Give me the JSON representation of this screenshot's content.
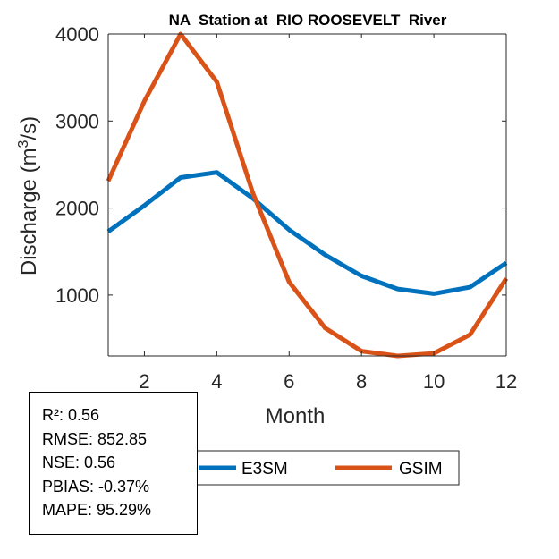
{
  "chart_data": {
    "type": "line",
    "title": "NA  Station at  RIO ROOSEVELT  River",
    "xlabel": "Month",
    "ylabel_prefix": "Discharge (m",
    "ylabel_sup": "3",
    "ylabel_suffix": "/s)",
    "xlim": [
      1,
      12
    ],
    "ylim": [
      300,
      4000
    ],
    "xticks": [
      2,
      4,
      6,
      8,
      10,
      12
    ],
    "yticks": [
      1000,
      2000,
      3000,
      4000
    ],
    "x": [
      1,
      2,
      3,
      4,
      5,
      6,
      7,
      8,
      9,
      10,
      11,
      12
    ],
    "series": [
      {
        "name": "E3SM",
        "color": "#0072BD",
        "values": [
          1730,
          2030,
          2350,
          2410,
          2110,
          1750,
          1460,
          1220,
          1070,
          1015,
          1090,
          1370
        ]
      },
      {
        "name": "GSIM",
        "color": "#D95319",
        "values": [
          2310,
          3230,
          4000,
          3450,
          2170,
          1150,
          620,
          355,
          300,
          330,
          545,
          1190
        ]
      }
    ],
    "legend_position": "bottom-center",
    "grid": false
  },
  "stats": [
    "R²: 0.56",
    "RMSE: 852.85",
    "NSE: 0.56",
    "PBIAS: -0.37%",
    "MAPE: 95.29%"
  ]
}
